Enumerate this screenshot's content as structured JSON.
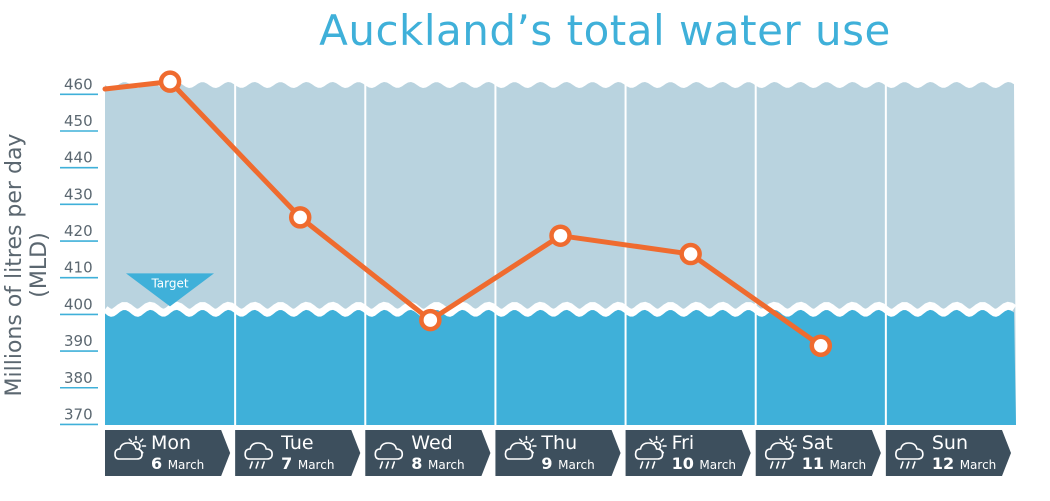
{
  "chart_data": {
    "type": "line",
    "title": "Auckland’s total water use",
    "ylabel": "Millions of litres per day (MLD)",
    "xlabel": "",
    "ylim": [
      365,
      462
    ],
    "yticks": [
      370,
      380,
      390,
      400,
      410,
      420,
      430,
      440,
      450,
      460
    ],
    "target": {
      "label": "Target",
      "value": 400
    },
    "categories": [
      {
        "day": "Mon",
        "date_num": "6",
        "date_month": "March",
        "weather_icon": "cloudy-sun-icon"
      },
      {
        "day": "Tue",
        "date_num": "7",
        "date_month": "March",
        "weather_icon": "rain-cloud-icon"
      },
      {
        "day": "Wed",
        "date_num": "8",
        "date_month": "March",
        "weather_icon": "rain-cloud-icon"
      },
      {
        "day": "Thu",
        "date_num": "9",
        "date_month": "March",
        "weather_icon": "cloudy-sun-icon"
      },
      {
        "day": "Fri",
        "date_num": "10",
        "date_month": "March",
        "weather_icon": "sun-rain-cloud-icon"
      },
      {
        "day": "Sat",
        "date_num": "11",
        "date_month": "March",
        "weather_icon": "sun-rain-cloud-icon"
      },
      {
        "day": "Sun",
        "date_num": "12",
        "date_month": "March",
        "weather_icon": "rain-cloud-icon"
      }
    ],
    "series": [
      {
        "values": [
          461,
          424,
          396,
          419,
          414,
          389,
          null
        ]
      }
    ],
    "line_start_value": 459,
    "grid": false,
    "colors": {
      "line": "#ef6b2f",
      "above_target": "#b9d3df",
      "below_target": "#3fb0d9",
      "axis_text": "#5b6770",
      "day_box": "#3d4f5d",
      "title": "#3fb0d9"
    }
  }
}
